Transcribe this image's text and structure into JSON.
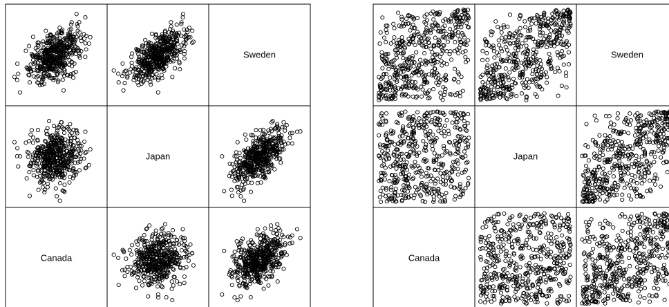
{
  "chart_data": [
    {
      "type": "scatter",
      "matrix": "pairs",
      "variables": [
        "Canada",
        "Japan",
        "Sweden"
      ],
      "diagonal_labels_only": true,
      "point_count_per_panel": 500,
      "distribution": "correlated normal (elliptical clouds)",
      "correlations": {
        "Japan-Sweden": 0.6,
        "Canada-Sweden": 0.45,
        "Canada-Japan": 0.1
      },
      "marker": "open-circle",
      "grid": false,
      "axes_ticks": false
    },
    {
      "type": "scatter",
      "matrix": "pairs",
      "variables": [
        "Canada",
        "Japan",
        "Sweden"
      ],
      "diagonal_labels_only": true,
      "point_count_per_panel": 500,
      "distribution": "uniform ranks (square, filling the panel)",
      "correlations": {
        "Japan-Sweden": 0.6,
        "Canada-Sweden": 0.45,
        "Canada-Japan": 0.1
      },
      "marker": "open-circle",
      "grid": false,
      "axes_ticks": false
    }
  ]
}
